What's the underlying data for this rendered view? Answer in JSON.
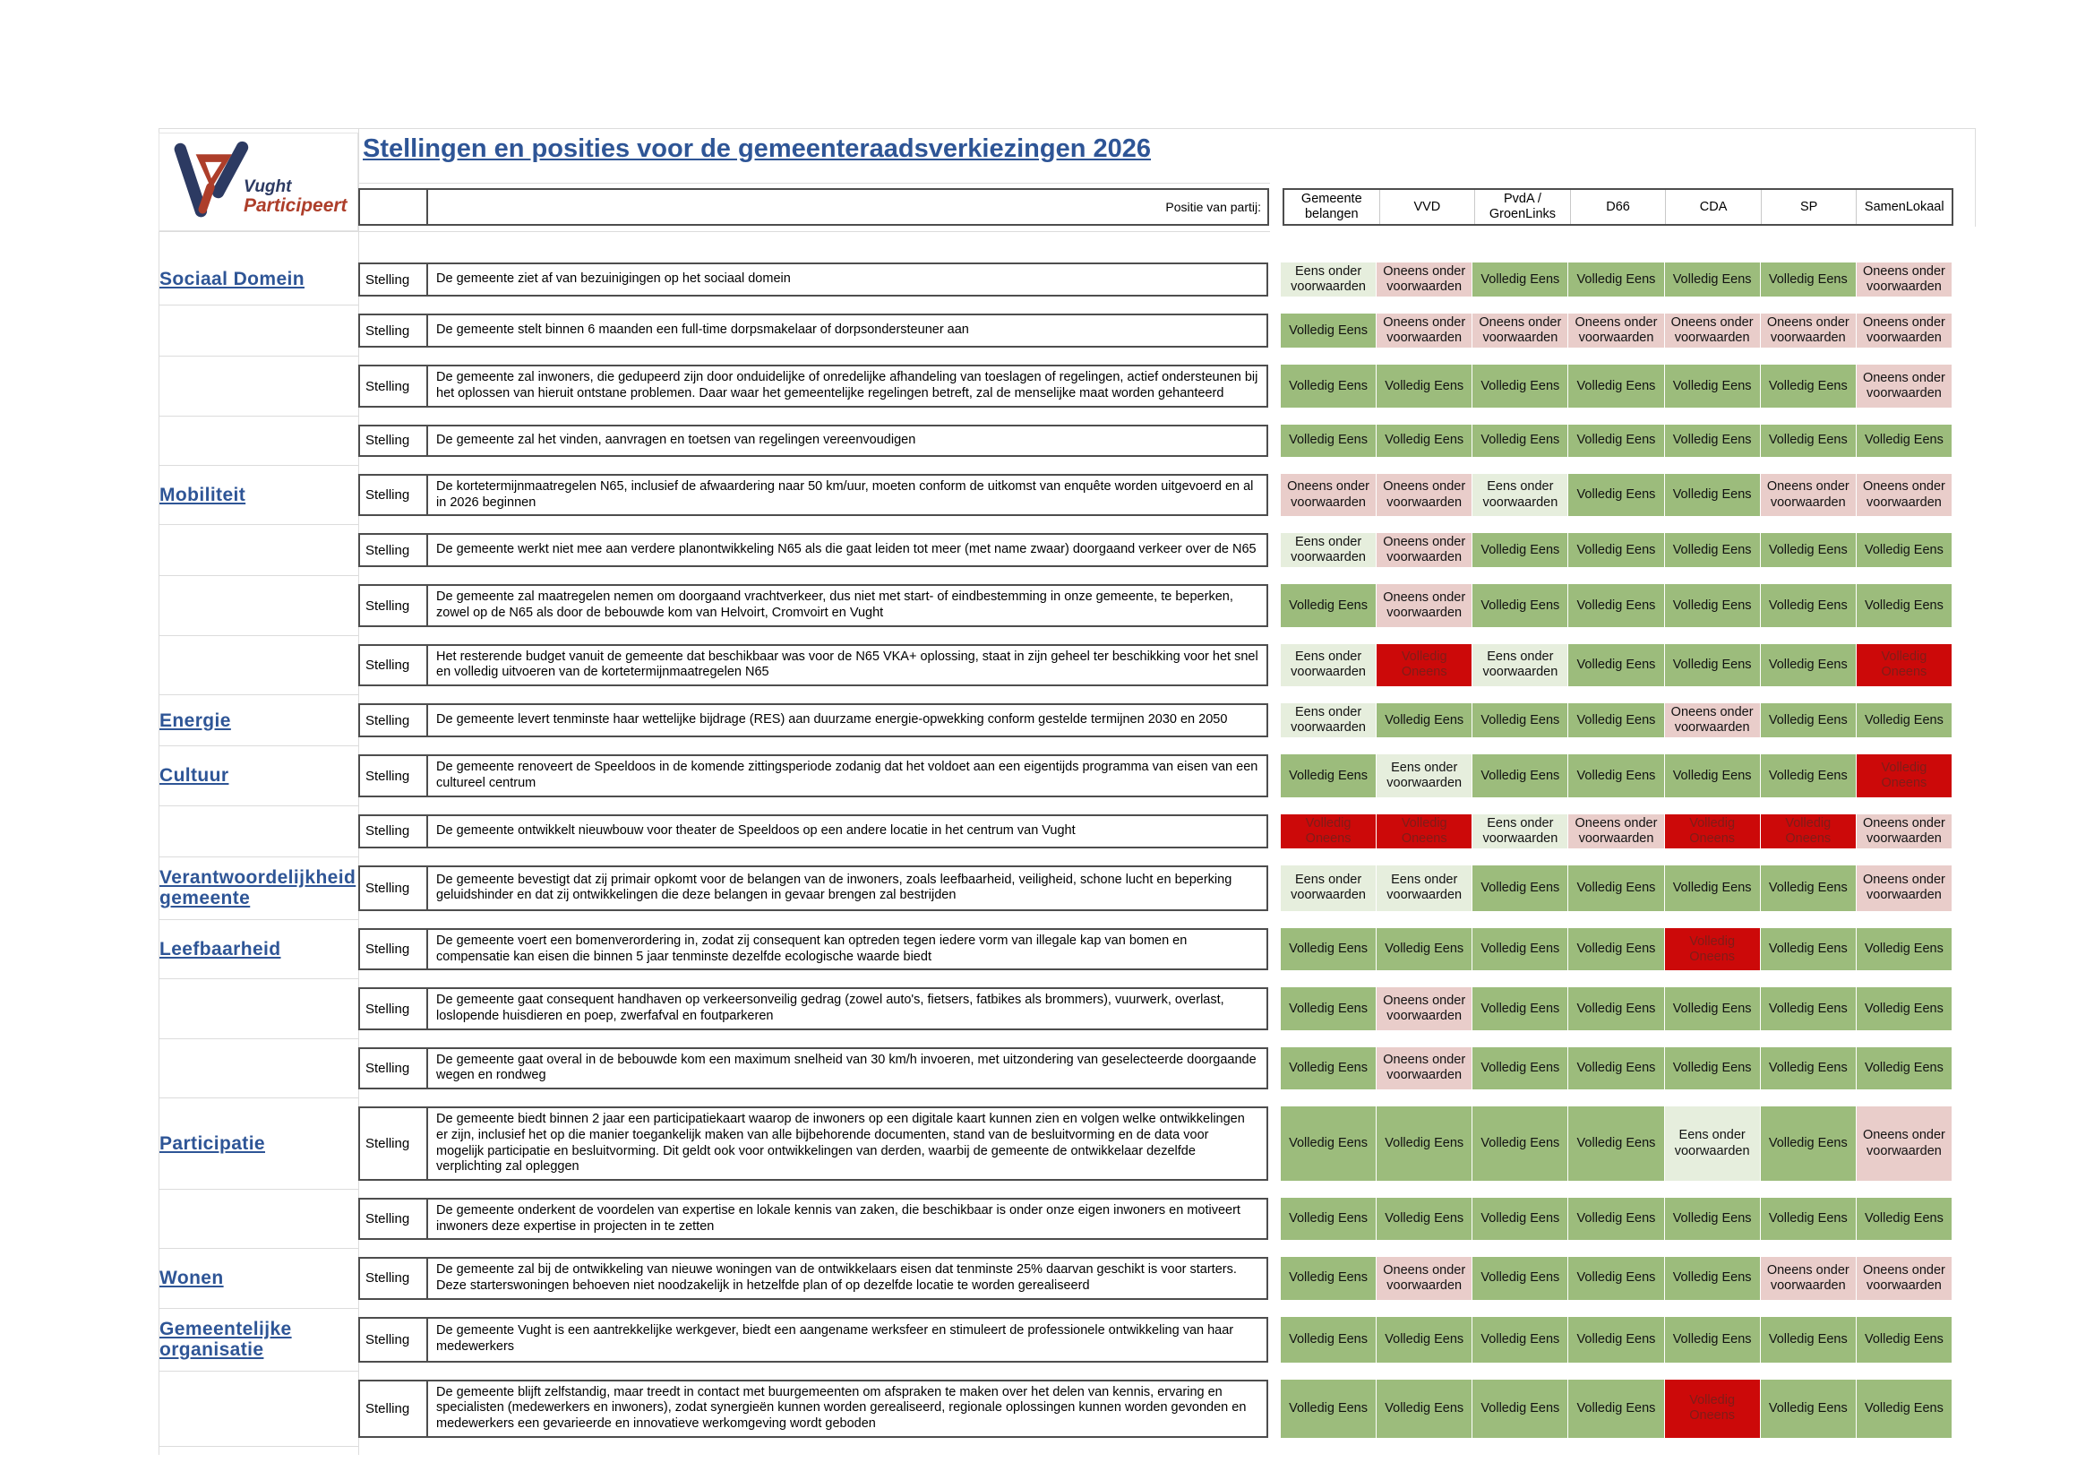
{
  "header": {
    "title": "Stellingen en posities voor de gemeenteraadsverkiezingen 2026",
    "logo": {
      "line1": "Vught",
      "line2": "Participeert"
    },
    "position_label": "Positie van partij:",
    "parties": [
      "Gemeente belangen",
      "VVD",
      "PvdA / GroenLinks",
      "D66",
      "CDA",
      "SP",
      "SamenLokaal"
    ]
  },
  "row_label": "Stelling",
  "position_types": {
    "VE": {
      "label": "Volledig Eens",
      "bg": "#9cbc7c",
      "color": "#111111"
    },
    "EOV": {
      "label": "Eens onder voorwaarden",
      "bg": "#e6eedd",
      "color": "#111111"
    },
    "OOV": {
      "label": "Oneens onder voorwaarden",
      "bg": "#e9cdca",
      "color": "#111111"
    },
    "VO": {
      "label": "Volledig Oneens",
      "bg": "#cc0909",
      "color": "#7e1d18"
    }
  },
  "rows": [
    {
      "category": "Sociaal Domein",
      "statement": "De gemeente ziet af van bezuinigingen op het sociaal domein",
      "positions": [
        "EOV",
        "OOV",
        "VE",
        "VE",
        "VE",
        "VE",
        "OOV"
      ]
    },
    {
      "category": "",
      "statement": "De gemeente stelt binnen 6 maanden een full-time dorpsmakelaar of dorpsondersteuner aan",
      "positions": [
        "VE",
        "OOV",
        "OOV",
        "OOV",
        "OOV",
        "OOV",
        "OOV"
      ]
    },
    {
      "category": "",
      "statement": "De gemeente zal inwoners, die gedupeerd zijn door onduidelijke of onredelijke afhandeling van toeslagen of regelingen, actief ondersteunen bij het oplossen van hieruit ontstane problemen. Daar waar het gemeentelijke regelingen betreft, zal de menselijke maat worden gehanteerd",
      "positions": [
        "VE",
        "VE",
        "VE",
        "VE",
        "VE",
        "VE",
        "OOV"
      ]
    },
    {
      "category": "",
      "statement": "De gemeente zal het vinden, aanvragen en toetsen van regelingen vereenvoudigen",
      "positions": [
        "VE",
        "VE",
        "VE",
        "VE",
        "VE",
        "VE",
        "VE"
      ]
    },
    {
      "category": "Mobiliteit",
      "statement": "De kortetermijnmaatregelen N65, inclusief de afwaardering naar 50 km/uur, moeten conform de uitkomst van enquête worden uitgevoerd en al in 2026 beginnen",
      "positions": [
        "OOV",
        "OOV",
        "EOV",
        "VE",
        "VE",
        "OOV",
        "OOV"
      ]
    },
    {
      "category": "",
      "statement": "De gemeente werkt niet mee aan verdere planontwikkeling N65 als die gaat leiden tot meer (met name zwaar) doorgaand verkeer over de N65",
      "positions": [
        "EOV",
        "OOV",
        "VE",
        "VE",
        "VE",
        "VE",
        "VE"
      ]
    },
    {
      "category": "",
      "statement": "De gemeente zal maatregelen nemen om doorgaand vrachtverkeer, dus niet met start- of eindbestemming in onze gemeente, te beperken, zowel op de N65 als door de bebouwde kom van Helvoirt, Cromvoirt en Vught",
      "positions": [
        "VE",
        "OOV",
        "VE",
        "VE",
        "VE",
        "VE",
        "VE"
      ]
    },
    {
      "category": "",
      "statement": "Het resterende budget vanuit de gemeente dat beschikbaar was voor de N65 VKA+ oplossing, staat in zijn geheel ter beschikking voor het snel en volledig uitvoeren van de kortetermijnmaatregelen N65",
      "positions": [
        "EOV",
        "VO",
        "EOV",
        "VE",
        "VE",
        "VE",
        "VO"
      ]
    },
    {
      "category": "Energie",
      "statement": "De gemeente levert tenminste haar wettelijke bijdrage (RES) aan duurzame energie-opwekking conform gestelde termijnen 2030 en 2050",
      "positions": [
        "EOV",
        "VE",
        "VE",
        "VE",
        "OOV",
        "VE",
        "VE"
      ]
    },
    {
      "category": "Cultuur",
      "statement": "De gemeente renoveert de Speeldoos in de komende zittingsperiode zodanig dat het voldoet aan een eigentijds programma van eisen van een cultureel centrum",
      "positions": [
        "VE",
        "EOV",
        "VE",
        "VE",
        "VE",
        "VE",
        "VO"
      ]
    },
    {
      "category": "",
      "statement": "De gemeente ontwikkelt nieuwbouw voor theater de Speeldoos op een andere locatie in het centrum van Vught",
      "positions": [
        "VO",
        "VO",
        "EOV",
        "OOV",
        "VO",
        "VO",
        "OOV"
      ]
    },
    {
      "category": "Verantwoordelijkheid gemeente",
      "statement": "De gemeente bevestigt dat zij primair opkomt voor de belangen van de inwoners, zoals leefbaarheid, veiligheid, schone lucht en beperking geluidshinder en dat zij ontwikkelingen die deze belangen in gevaar brengen zal bestrijden",
      "positions": [
        "EOV",
        "EOV",
        "VE",
        "VE",
        "VE",
        "VE",
        "OOV"
      ]
    },
    {
      "category": "Leefbaarheid",
      "statement": "De gemeente voert een bomenverordering in, zodat zij consequent kan optreden tegen iedere vorm van illegale kap van bomen en compensatie kan eisen die binnen 5 jaar tenminste dezelfde ecologische waarde biedt",
      "positions": [
        "VE",
        "VE",
        "VE",
        "VE",
        "VO",
        "VE",
        "VE"
      ]
    },
    {
      "category": "",
      "statement": "De gemeente gaat consequent handhaven op verkeersonveilig gedrag (zowel auto's, fietsers, fatbikes als brommers), vuurwerk, overlast, loslopende huisdieren en poep, zwerfafval en foutparkeren",
      "positions": [
        "VE",
        "OOV",
        "VE",
        "VE",
        "VE",
        "VE",
        "VE"
      ]
    },
    {
      "category": "",
      "statement": "De gemeente gaat overal in de bebouwde kom een maximum snelheid van 30 km/h invoeren, met uitzondering van geselecteerde doorgaande wegen en rondweg",
      "positions": [
        "VE",
        "OOV",
        "VE",
        "VE",
        "VE",
        "VE",
        "VE"
      ]
    },
    {
      "category": "Participatie",
      "statement": "De gemeente biedt binnen 2 jaar een participatiekaart waarop de inwoners op een digitale kaart kunnen zien en volgen welke ontwikkelingen er zijn, inclusief het op die manier toegankelijk maken van alle bijbehorende documenten, stand van de besluitvorming en de data voor mogelijk participatie en besluitvorming. Dit geldt ook voor ontwikkelingen van derden, waarbij de gemeente de ontwikkelaar dezelfde verplichting zal opleggen",
      "positions": [
        "VE",
        "VE",
        "VE",
        "VE",
        "EOV",
        "VE",
        "OOV"
      ]
    },
    {
      "category": "",
      "statement": "De gemeente onderkent de voordelen van expertise en lokale kennis van zaken, die beschikbaar is onder onze eigen inwoners en motiveert inwoners deze expertise in projecten in te zetten",
      "positions": [
        "VE",
        "VE",
        "VE",
        "VE",
        "VE",
        "VE",
        "VE"
      ]
    },
    {
      "category": "Wonen",
      "statement": "De gemeente zal bij de ontwikkeling van nieuwe woningen van de ontwikkelaars eisen dat tenminste 25% daarvan geschikt is voor starters. Deze starterswoningen behoeven niet noodzakelijk in hetzelfde plan of op dezelfde locatie te worden gerealiseerd",
      "positions": [
        "VE",
        "OOV",
        "VE",
        "VE",
        "VE",
        "OOV",
        "OOV"
      ]
    },
    {
      "category": "Gemeentelijke organisatie",
      "statement": "De gemeente Vught is een aantrekkelijke werkgever, biedt een aangename werksfeer en stimuleert de professionele ontwikkeling van haar medewerkers",
      "positions": [
        "VE",
        "VE",
        "VE",
        "VE",
        "VE",
        "VE",
        "VE"
      ]
    },
    {
      "category": "",
      "statement": "De gemeente blijft zelfstandig, maar treedt in contact met buurgemeenten om afspraken te maken over het delen van kennis, ervaring en specialisten (medewerkers en inwoners), zodat synergieën kunnen worden gerealiseerd, regionale oplossingen kunnen worden gevonden en medewerkers een gevarieerde en innovatieve werkomgeving wordt geboden",
      "positions": [
        "VE",
        "VE",
        "VE",
        "VE",
        "VO",
        "VE",
        "VE"
      ]
    }
  ]
}
